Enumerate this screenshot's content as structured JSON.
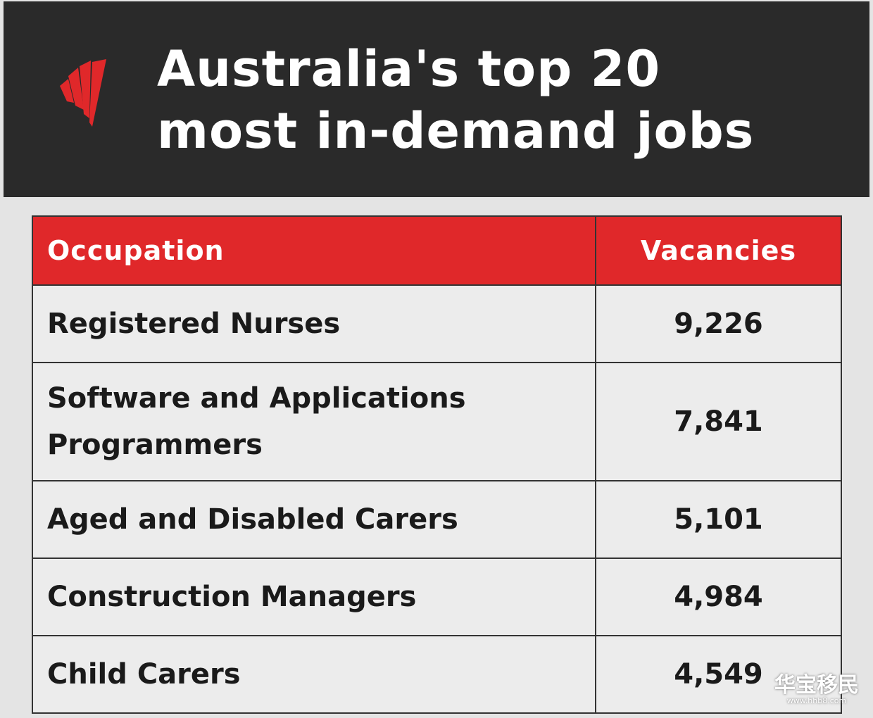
{
  "header": {
    "title": "Australia's top 20 most in-demand jobs"
  },
  "table": {
    "columns": [
      "Occupation",
      "Vacancies"
    ],
    "rows": [
      [
        "Registered Nurses",
        "9,226"
      ],
      [
        "Software and Applications Programmers",
        "7,841"
      ],
      [
        "Aged and Disabled Carers",
        "5,101"
      ],
      [
        "Construction Managers",
        "4,984"
      ],
      [
        "Child Carers",
        "4,549"
      ]
    ]
  },
  "watermark": {
    "name": "华宝移民",
    "url": "www.hhb8.com"
  }
}
